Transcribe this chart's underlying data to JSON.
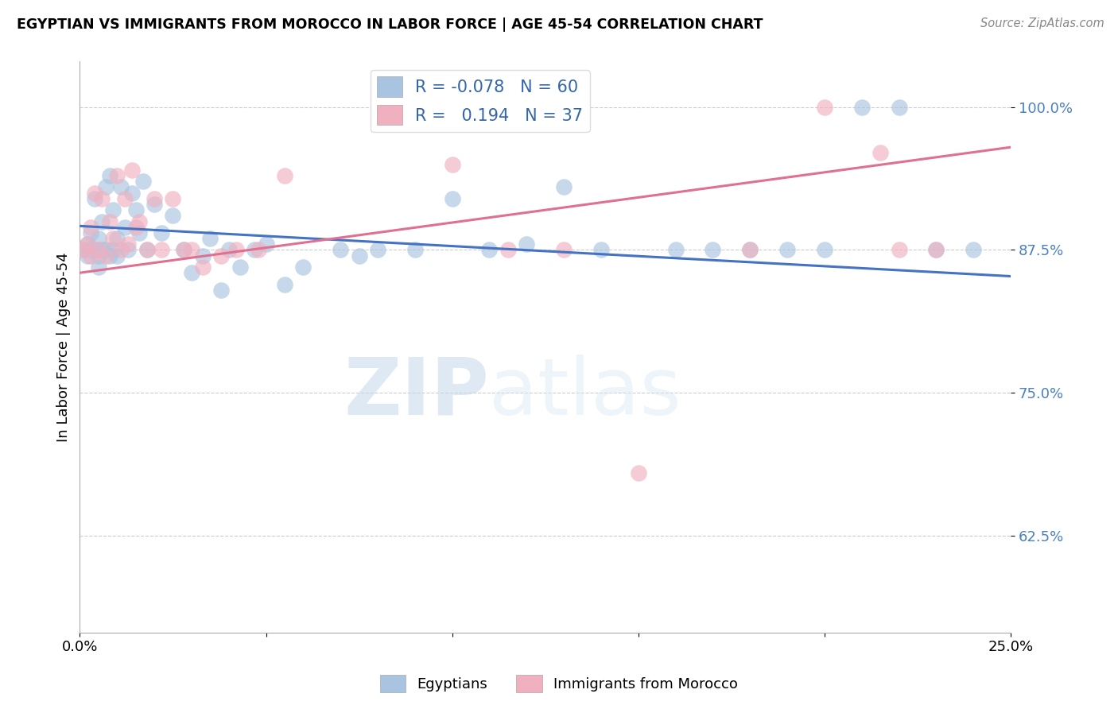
{
  "title": "EGYPTIAN VS IMMIGRANTS FROM MOROCCO IN LABOR FORCE | AGE 45-54 CORRELATION CHART",
  "source": "Source: ZipAtlas.com",
  "ylabel": "In Labor Force | Age 45-54",
  "xlim": [
    0.0,
    0.25
  ],
  "ylim": [
    0.54,
    1.04
  ],
  "yticks": [
    0.625,
    0.75,
    0.875,
    1.0
  ],
  "ytick_labels": [
    "62.5%",
    "75.0%",
    "87.5%",
    "100.0%"
  ],
  "xticks": [
    0.0,
    0.05,
    0.1,
    0.15,
    0.2,
    0.25
  ],
  "xtick_labels": [
    "0.0%",
    "",
    "",
    "",
    "",
    "25.0%"
  ],
  "watermark_zip": "ZIP",
  "watermark_atlas": "atlas",
  "blue_color": "#a8c4e0",
  "pink_color": "#f0b0c0",
  "blue_line_color": "#4472c4",
  "pink_line_color": "#e07090",
  "R_blue": -0.078,
  "N_blue": 60,
  "R_pink": 0.194,
  "N_pink": 37,
  "blue_line_x0": 0.0,
  "blue_line_y0": 0.896,
  "blue_line_x1": 0.25,
  "blue_line_y1": 0.852,
  "pink_line_x0": 0.0,
  "pink_line_y0": 0.855,
  "pink_line_x1": 0.25,
  "pink_line_y1": 0.965,
  "blue_x": [
    0.001,
    0.002,
    0.002,
    0.003,
    0.003,
    0.004,
    0.004,
    0.005,
    0.005,
    0.005,
    0.006,
    0.006,
    0.007,
    0.007,
    0.008,
    0.008,
    0.009,
    0.009,
    0.01,
    0.01,
    0.011,
    0.012,
    0.013,
    0.014,
    0.015,
    0.016,
    0.017,
    0.018,
    0.02,
    0.022,
    0.025,
    0.028,
    0.03,
    0.033,
    0.035,
    0.038,
    0.04,
    0.043,
    0.047,
    0.05,
    0.055,
    0.06,
    0.07,
    0.075,
    0.08,
    0.09,
    0.1,
    0.11,
    0.12,
    0.13,
    0.14,
    0.16,
    0.17,
    0.18,
    0.19,
    0.2,
    0.21,
    0.22,
    0.23,
    0.24
  ],
  "blue_y": [
    0.875,
    0.88,
    0.87,
    0.875,
    0.89,
    0.875,
    0.92,
    0.86,
    0.885,
    0.87,
    0.875,
    0.9,
    0.875,
    0.93,
    0.87,
    0.94,
    0.875,
    0.91,
    0.885,
    0.87,
    0.93,
    0.895,
    0.875,
    0.925,
    0.91,
    0.89,
    0.935,
    0.875,
    0.915,
    0.89,
    0.905,
    0.875,
    0.855,
    0.87,
    0.885,
    0.84,
    0.875,
    0.86,
    0.875,
    0.88,
    0.845,
    0.86,
    0.875,
    0.87,
    0.875,
    0.875,
    0.92,
    0.875,
    0.88,
    0.93,
    0.875,
    0.875,
    0.875,
    0.875,
    0.875,
    0.875,
    1.0,
    1.0,
    0.875,
    0.875
  ],
  "pink_x": [
    0.001,
    0.002,
    0.003,
    0.003,
    0.004,
    0.005,
    0.006,
    0.007,
    0.008,
    0.009,
    0.01,
    0.011,
    0.012,
    0.013,
    0.014,
    0.015,
    0.016,
    0.018,
    0.02,
    0.022,
    0.025,
    0.028,
    0.03,
    0.033,
    0.038,
    0.042,
    0.048,
    0.055,
    0.1,
    0.115,
    0.13,
    0.15,
    0.18,
    0.2,
    0.215,
    0.22,
    0.23
  ],
  "pink_y": [
    0.875,
    0.88,
    0.895,
    0.87,
    0.925,
    0.875,
    0.92,
    0.87,
    0.9,
    0.885,
    0.94,
    0.875,
    0.92,
    0.88,
    0.945,
    0.895,
    0.9,
    0.875,
    0.92,
    0.875,
    0.92,
    0.875,
    0.875,
    0.86,
    0.87,
    0.875,
    0.875,
    0.94,
    0.95,
    0.875,
    0.875,
    0.68,
    0.875,
    1.0,
    0.96,
    0.875,
    0.875
  ]
}
